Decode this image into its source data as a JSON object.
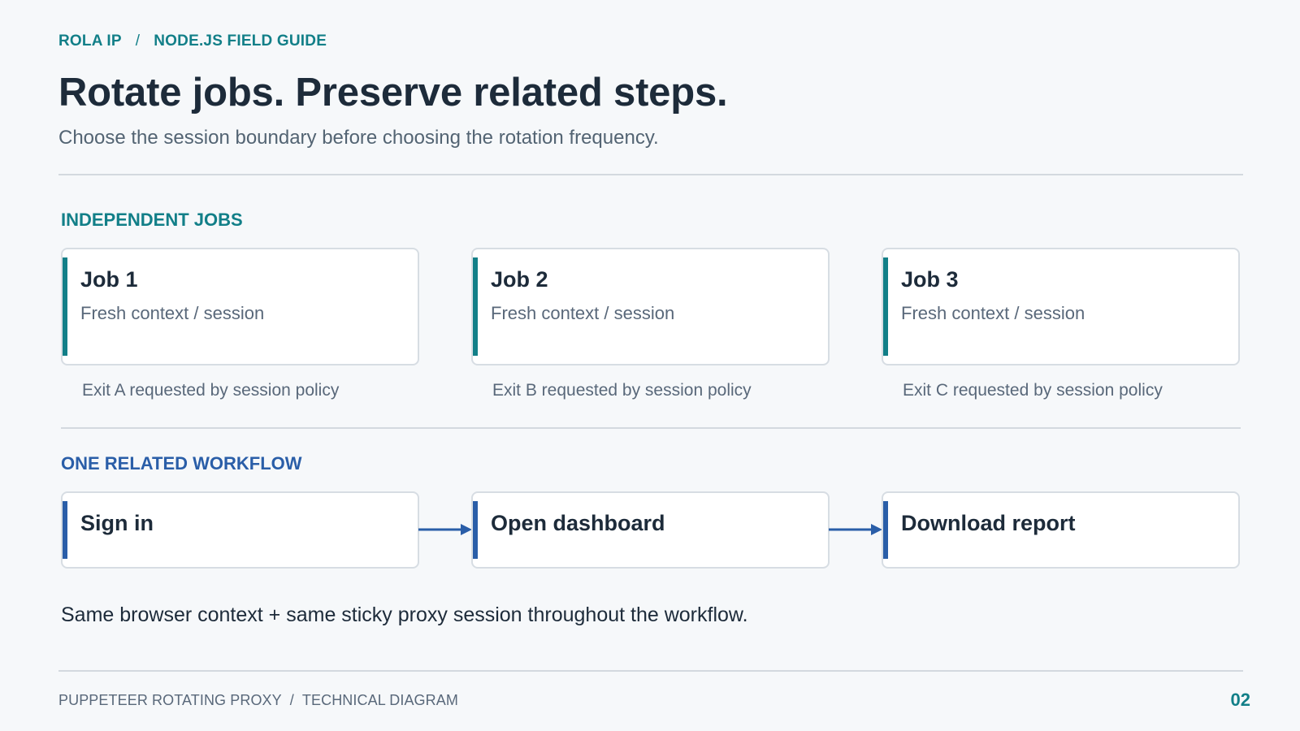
{
  "header": {
    "breadcrumb": [
      "ROLA IP",
      "NODE.JS FIELD GUIDE"
    ],
    "breadcrumb_separator": "/",
    "title": "Rotate jobs. Preserve related steps.",
    "subtitle": "Choose the session boundary before choosing the rotation frequency."
  },
  "independent_jobs": {
    "label": "INDEPENDENT JOBS",
    "cards": [
      {
        "title": "Job 1",
        "description": "Fresh context / session",
        "note": "Exit A requested by session policy"
      },
      {
        "title": "Job 2",
        "description": "Fresh context / session",
        "note": "Exit B requested by session policy"
      },
      {
        "title": "Job 3",
        "description": "Fresh context / session",
        "note": "Exit C requested by session policy"
      }
    ]
  },
  "related_workflow": {
    "label": "ONE RELATED WORKFLOW",
    "steps": [
      {
        "title": "Sign in"
      },
      {
        "title": "Open dashboard"
      },
      {
        "title": "Download report"
      }
    ],
    "note": "Same browser context + same sticky proxy session throughout the workflow."
  },
  "footer": {
    "parts": [
      "PUPPETEER ROTATING PROXY",
      "TECHNICAL DIAGRAM"
    ],
    "separator": "/",
    "page_number": "02"
  },
  "colors": {
    "teal_accent": "#127f88",
    "blue_accent": "#2a5ea8",
    "background": "#f6f8fa",
    "card_border": "#d7dde3"
  }
}
